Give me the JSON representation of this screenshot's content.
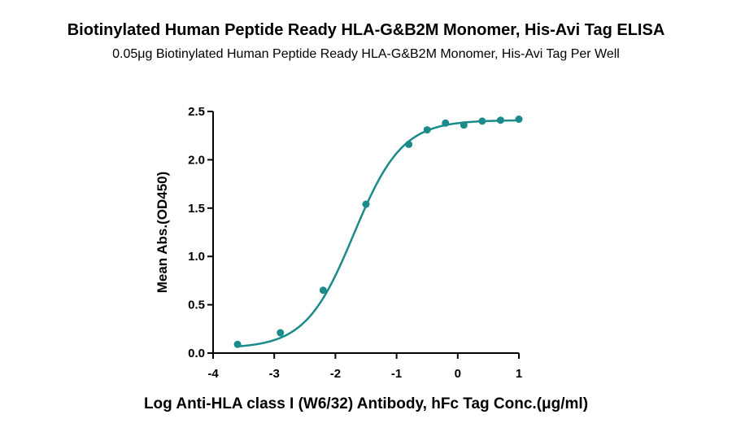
{
  "chart_data": {
    "type": "scatter",
    "title": "Biotinylated Human Peptide Ready HLA-G&B2M Monomer, His-Avi Tag ELISA",
    "subtitle": "0.05μg Biotinylated Human Peptide Ready HLA-G&B2M Monomer, His-Avi Tag Per Well",
    "xlabel": "Log Anti-HLA class I (W6/32) Antibody, hFc Tag Conc.(μg/ml)",
    "ylabel": "Mean Abs.(OD450)",
    "xlim": [
      -4,
      1
    ],
    "ylim": [
      0,
      2.5
    ],
    "xticks": [
      "-4",
      "-3",
      "-2",
      "-1",
      "0",
      "1"
    ],
    "yticks": [
      "0.0",
      "0.5",
      "1.0",
      "1.5",
      "2.0",
      "2.5"
    ],
    "grid": false,
    "series": [
      {
        "color": "#1a8a8a",
        "points": [
          {
            "x": -3.6,
            "y": 0.09
          },
          {
            "x": -2.9,
            "y": 0.21
          },
          {
            "x": -2.2,
            "y": 0.65
          },
          {
            "x": -1.5,
            "y": 1.54
          },
          {
            "x": -0.8,
            "y": 2.16
          },
          {
            "x": -0.5,
            "y": 2.31
          },
          {
            "x": -0.2,
            "y": 2.38
          },
          {
            "x": 0.1,
            "y": 2.36
          },
          {
            "x": 0.4,
            "y": 2.4
          },
          {
            "x": 0.7,
            "y": 2.41
          },
          {
            "x": 1.0,
            "y": 2.42
          }
        ],
        "fit": {
          "bottom": 0.05,
          "top": 2.41,
          "logEC50": -1.7,
          "hill": 1.1
        }
      }
    ]
  }
}
